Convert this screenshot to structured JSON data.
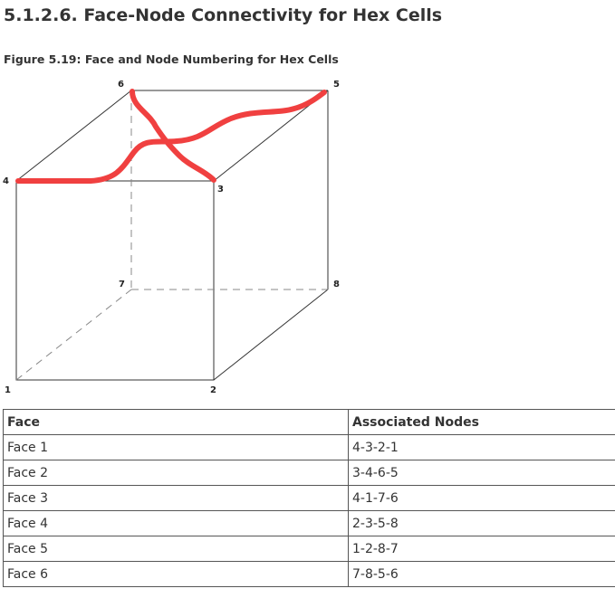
{
  "section_title": "5.1.2.6. Face-Node Connectivity for Hex Cells",
  "figure_caption": "Figure 5.19:  Face and Node Numbering for Hex Cells",
  "figure": {
    "nodes": {
      "n1": "1",
      "n2": "2",
      "n3": "3",
      "n4": "4",
      "n5": "5",
      "n6": "6",
      "n7": "7",
      "n8": "8"
    },
    "annotation_color": "#f04040"
  },
  "table": {
    "headers": [
      "Face",
      "Associated Nodes"
    ],
    "rows": [
      [
        "Face 1",
        "4-3-2-1"
      ],
      [
        "Face 2",
        "3-4-6-5"
      ],
      [
        "Face 3",
        "4-1-7-6"
      ],
      [
        "Face 4",
        "2-3-5-8"
      ],
      [
        "Face 5",
        "1-2-8-7"
      ],
      [
        "Face 6",
        "7-8-5-6"
      ]
    ]
  }
}
